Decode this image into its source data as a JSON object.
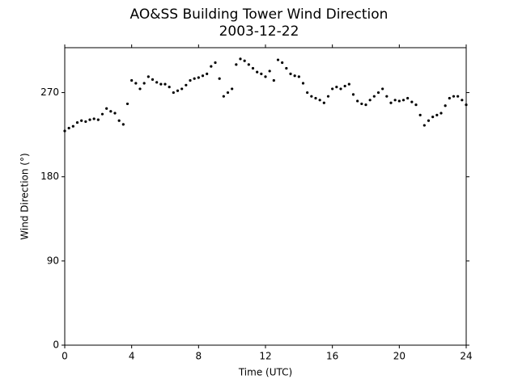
{
  "chart_data": {
    "type": "scatter",
    "title": "AO&SS Building Tower Wind Direction",
    "subtitle": "2003-12-22",
    "x_label": "Time (UTC)",
    "y_label": "Wind Direction (°)",
    "color": "#000000",
    "xlim": [
      0,
      24
    ],
    "ylim": [
      0,
      318
    ],
    "xticks": [
      0,
      4,
      8,
      12,
      16,
      20,
      24
    ],
    "yticks": [
      0,
      90,
      180,
      270
    ],
    "x": [
      0,
      0.25,
      0.5,
      0.75,
      1,
      1.25,
      1.5,
      1.75,
      2,
      2.25,
      2.5,
      2.75,
      3,
      3.25,
      3.5,
      3.75,
      4,
      4.25,
      4.5,
      4.75,
      5,
      5.25,
      5.5,
      5.75,
      6,
      6.25,
      6.5,
      6.75,
      7,
      7.25,
      7.5,
      7.75,
      8,
      8.25,
      8.5,
      8.75,
      9,
      9.25,
      9.5,
      9.75,
      10,
      10.25,
      10.5,
      10.75,
      11,
      11.25,
      11.5,
      11.75,
      12,
      12.25,
      12.5,
      12.75,
      13,
      13.25,
      13.5,
      13.75,
      14,
      14.25,
      14.5,
      14.75,
      15,
      15.25,
      15.5,
      15.75,
      16,
      16.25,
      16.5,
      16.75,
      17,
      17.25,
      17.5,
      17.75,
      18,
      18.25,
      18.5,
      18.75,
      19,
      19.25,
      19.5,
      19.75,
      20,
      20.25,
      20.5,
      20.75,
      21,
      21.25,
      21.5,
      21.75,
      22,
      22.25,
      22.5,
      22.75,
      23,
      23.25,
      23.5,
      23.75,
      24
    ],
    "values": [
      229,
      232,
      234,
      238,
      240,
      239,
      241,
      242,
      241,
      247,
      253,
      250,
      248,
      240,
      236,
      258,
      283,
      280,
      274,
      280,
      287,
      284,
      281,
      279,
      279,
      276,
      270,
      272,
      274,
      278,
      283,
      285,
      286,
      288,
      290,
      298,
      302,
      285,
      266,
      270,
      274,
      300,
      306,
      304,
      300,
      296,
      292,
      290,
      287,
      293,
      283,
      305,
      302,
      296,
      290,
      288,
      287,
      280,
      270,
      266,
      264,
      262,
      259,
      266,
      274,
      276,
      274,
      277,
      279,
      268,
      261,
      258,
      257,
      262,
      266,
      270,
      274,
      266,
      259,
      262,
      261,
      262,
      264,
      260,
      257,
      246,
      235,
      240,
      244,
      246,
      248,
      256,
      264,
      266,
      266,
      262,
      257
    ]
  }
}
